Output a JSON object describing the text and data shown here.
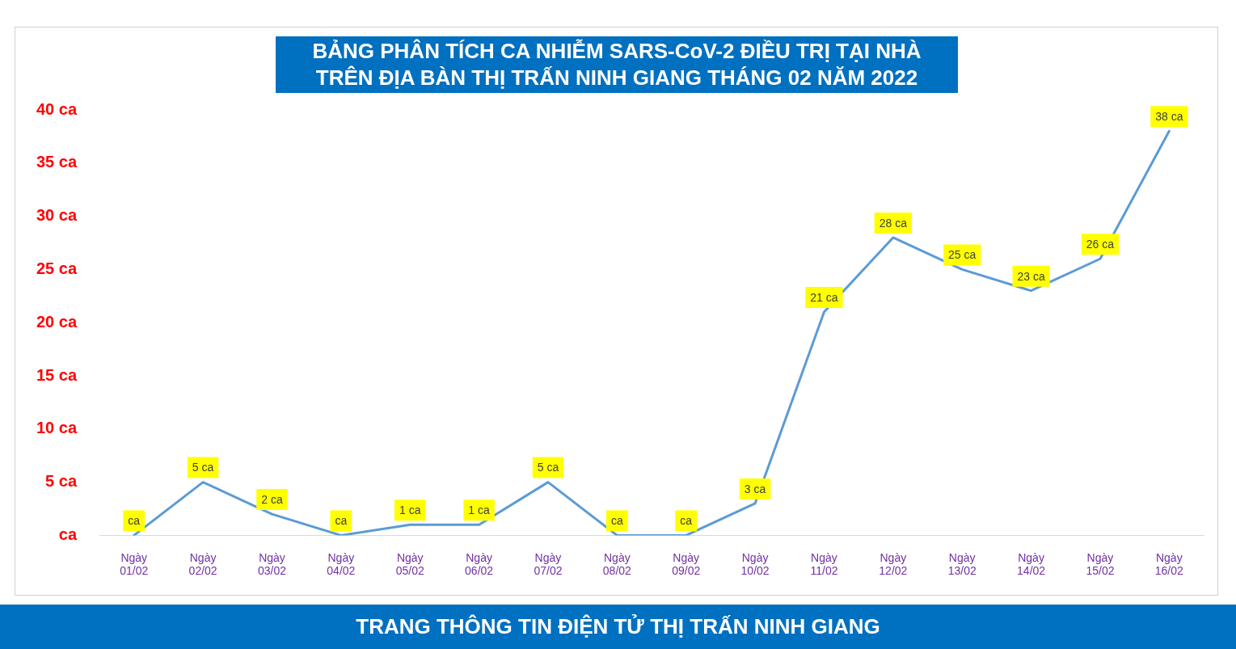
{
  "chart_data": {
    "type": "line",
    "title": "BẢNG PHÂN TÍCH CA NHIỄM SARS-CoV-2 ĐIỀU TRỊ TẠI NHÀ\nTRÊN ĐỊA BÀN THỊ TRẤN NINH GIANG THÁNG 02 NĂM 2022",
    "categories": [
      "Ngày 01/02",
      "Ngày 02/02",
      "Ngày 03/02",
      "Ngày 04/02",
      "Ngày 05/02",
      "Ngày 06/02",
      "Ngày 07/02",
      "Ngày 08/02",
      "Ngày 09/02",
      "Ngày 10/02",
      "Ngày 11/02",
      "Ngày 12/02",
      "Ngày 13/02",
      "Ngày 14/02",
      "Ngày 15/02",
      "Ngày 16/02"
    ],
    "series": [
      {
        "color": "#5b9bd5",
        "values": [
          0,
          5,
          2,
          0,
          1,
          1,
          5,
          0,
          0,
          3,
          21,
          28,
          25,
          23,
          26,
          38
        ],
        "value_labels": [
          "ca",
          "5 ca",
          "2 ca",
          "ca",
          "1 ca",
          "1 ca",
          "5 ca",
          "ca",
          "ca",
          "3 ca",
          "21 ca",
          "28 ca",
          "25 ca",
          "23 ca",
          "26 ca",
          "38 ca"
        ]
      }
    ],
    "ylim": [
      0,
      40
    ],
    "yticks": [
      {
        "value": 0,
        "label": "ca"
      },
      {
        "value": 5,
        "label": "5 ca"
      },
      {
        "value": 10,
        "label": "10 ca"
      },
      {
        "value": 15,
        "label": "15 ca"
      },
      {
        "value": 20,
        "label": "20 ca"
      },
      {
        "value": 25,
        "label": "25 ca"
      },
      {
        "value": 30,
        "label": "30 ca"
      },
      {
        "value": 35,
        "label": "35 ca"
      },
      {
        "value": 40,
        "label": "40 ca"
      }
    ],
    "grid": false,
    "line_style": "solid",
    "legend": false,
    "annotations": [
      "TRANG THÔNG TIN ĐIỆN TỬ THỊ TRẤN NINH GIANG"
    ]
  }
}
